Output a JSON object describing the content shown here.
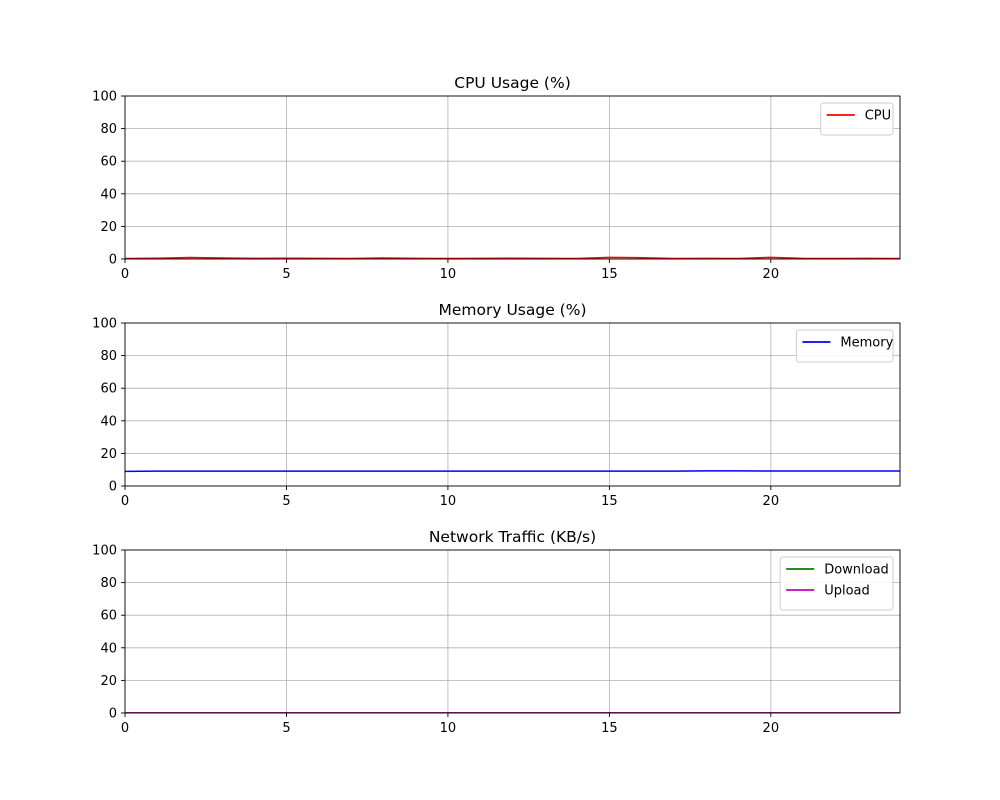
{
  "chart_data": [
    {
      "type": "line",
      "title": "CPU Usage (%)",
      "xlabel": "",
      "ylabel": "",
      "xlim": [
        0,
        24
      ],
      "ylim": [
        0,
        100
      ],
      "xticks": [
        "0",
        "5",
        "10",
        "15",
        "20"
      ],
      "yticks": [
        "0",
        "20",
        "40",
        "60",
        "80",
        "100"
      ],
      "grid": true,
      "legend_position": "top-right",
      "series": [
        {
          "name": "CPU",
          "color": "#ff0000",
          "x": [
            0,
            1,
            2,
            3,
            4,
            5,
            6,
            7,
            8,
            9,
            10,
            11,
            12,
            13,
            14,
            15,
            16,
            17,
            18,
            19,
            20,
            21,
            22,
            23,
            24
          ],
          "values": [
            0.3,
            0.5,
            0.9,
            0.6,
            0.4,
            0.5,
            0.4,
            0.3,
            0.6,
            0.4,
            0.3,
            0.4,
            0.5,
            0.4,
            0.3,
            1.0,
            0.8,
            0.3,
            0.4,
            0.3,
            1.0,
            0.4,
            0.3,
            0.4,
            0.3
          ]
        }
      ]
    },
    {
      "type": "line",
      "title": "Memory Usage (%)",
      "xlabel": "",
      "ylabel": "",
      "xlim": [
        0,
        24
      ],
      "ylim": [
        0,
        100
      ],
      "xticks": [
        "0",
        "5",
        "10",
        "15",
        "20"
      ],
      "yticks": [
        "0",
        "20",
        "40",
        "60",
        "80",
        "100"
      ],
      "grid": true,
      "legend_position": "top-right",
      "series": [
        {
          "name": "Memory",
          "color": "#0000ff",
          "x": [
            0,
            1,
            2,
            3,
            4,
            5,
            6,
            7,
            8,
            9,
            10,
            11,
            12,
            13,
            14,
            15,
            16,
            17,
            18,
            19,
            20,
            21,
            22,
            23,
            24
          ],
          "values": [
            9.0,
            9.1,
            9.1,
            9.1,
            9.1,
            9.1,
            9.1,
            9.1,
            9.1,
            9.1,
            9.1,
            9.1,
            9.1,
            9.1,
            9.1,
            9.1,
            9.1,
            9.1,
            9.3,
            9.3,
            9.2,
            9.2,
            9.2,
            9.2,
            9.2
          ]
        }
      ]
    },
    {
      "type": "line",
      "title": "Network Traffic (KB/s)",
      "xlabel": "",
      "ylabel": "",
      "xlim": [
        0,
        24
      ],
      "ylim": [
        0,
        100
      ],
      "xticks": [
        "0",
        "5",
        "10",
        "15",
        "20"
      ],
      "yticks": [
        "0",
        "20",
        "40",
        "60",
        "80",
        "100"
      ],
      "grid": true,
      "legend_position": "top-right",
      "series": [
        {
          "name": "Download",
          "color": "#008000",
          "x": [
            0,
            1,
            2,
            3,
            4,
            5,
            6,
            7,
            8,
            9,
            10,
            11,
            12,
            13,
            14,
            15,
            16,
            17,
            18,
            19,
            20,
            21,
            22,
            23,
            24
          ],
          "values": [
            0.1,
            0.1,
            0.1,
            0.1,
            0.1,
            0.1,
            0.1,
            0.1,
            0.1,
            0.1,
            0.1,
            0.1,
            0.1,
            0.1,
            0.1,
            0.1,
            0.1,
            0.1,
            0.1,
            0.1,
            0.1,
            0.1,
            0.1,
            0.1,
            0.1
          ]
        },
        {
          "name": "Upload",
          "color": "#bf00bf",
          "x": [
            0,
            1,
            2,
            3,
            4,
            5,
            6,
            7,
            8,
            9,
            10,
            11,
            12,
            13,
            14,
            15,
            16,
            17,
            18,
            19,
            20,
            21,
            22,
            23,
            24
          ],
          "values": [
            0.1,
            0.1,
            0.1,
            0.1,
            0.1,
            0.1,
            0.1,
            0.1,
            0.1,
            0.1,
            0.1,
            0.1,
            0.1,
            0.1,
            0.1,
            0.1,
            0.1,
            0.1,
            0.1,
            0.1,
            0.1,
            0.1,
            0.1,
            0.1,
            0.1
          ]
        }
      ]
    }
  ]
}
